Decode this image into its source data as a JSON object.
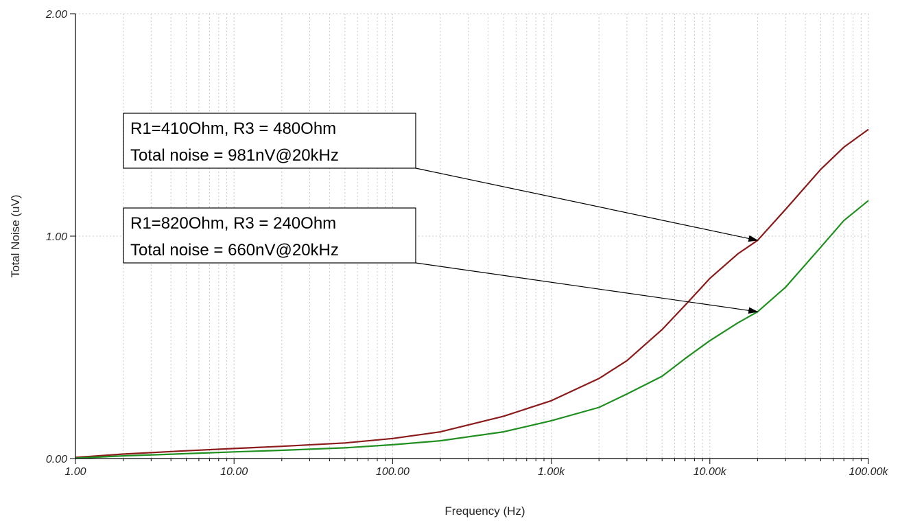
{
  "chart_data": {
    "type": "line",
    "xscale": "log",
    "xlim": [
      1,
      100000
    ],
    "ylim": [
      0,
      2.0
    ],
    "grid": true,
    "xlabel": "Frequency (Hz)",
    "ylabel": "Total Noise (uV)",
    "ylabel_color": "#2e9a2e",
    "x_tick_labels": [
      "1.00",
      "10.00",
      "100.00",
      "1.00k",
      "10.00k",
      "100.00k"
    ],
    "x_tick_values": [
      1,
      10,
      100,
      1000,
      10000,
      100000
    ],
    "y_tick_labels": [
      "0.00",
      "1.00",
      "2.00"
    ],
    "y_tick_values": [
      0,
      1,
      2
    ],
    "series": [
      {
        "color": "#8b1a1a",
        "x": [
          1,
          2,
          5,
          10,
          20,
          50,
          100,
          200,
          500,
          1000,
          2000,
          3000,
          5000,
          7000,
          10000,
          15000,
          20000,
          30000,
          50000,
          70000,
          100000
        ],
        "y": [
          0.005,
          0.02,
          0.035,
          0.045,
          0.055,
          0.07,
          0.09,
          0.12,
          0.19,
          0.26,
          0.36,
          0.44,
          0.58,
          0.69,
          0.81,
          0.92,
          0.981,
          1.12,
          1.3,
          1.4,
          1.48
        ]
      },
      {
        "color": "#1f8f1f",
        "x": [
          1,
          2,
          5,
          10,
          20,
          50,
          100,
          200,
          500,
          1000,
          2000,
          3000,
          5000,
          7000,
          10000,
          15000,
          20000,
          30000,
          50000,
          70000,
          100000
        ],
        "y": [
          0.002,
          0.012,
          0.022,
          0.03,
          0.037,
          0.048,
          0.062,
          0.08,
          0.12,
          0.17,
          0.23,
          0.29,
          0.37,
          0.45,
          0.53,
          0.61,
          0.66,
          0.77,
          0.95,
          1.07,
          1.16
        ]
      }
    ],
    "annotations": [
      {
        "line1": "R1=410Ohm, R3 = 480Ohm",
        "line2": "Total noise = 981nV@20kHz",
        "target_x": 20000,
        "target_y": 0.981
      },
      {
        "line1": "R1=820Ohm, R3 = 240Ohm",
        "line2": "Total noise = 660nV@20kHz",
        "target_x": 20000,
        "target_y": 0.66
      }
    ]
  }
}
